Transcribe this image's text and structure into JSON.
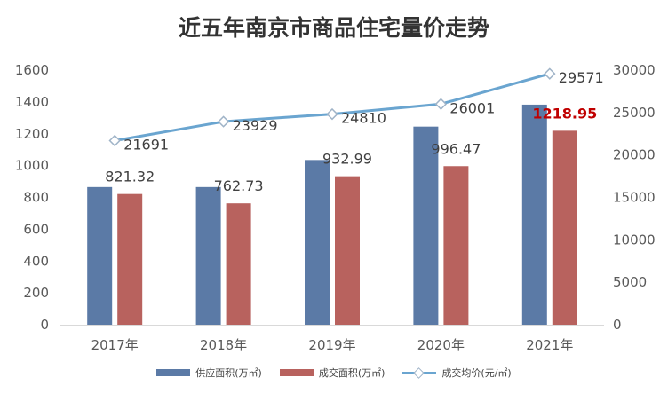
{
  "chart_data": {
    "type": "bar",
    "title": "近五年南京市商品住宅量价走势",
    "categories": [
      "2017年",
      "2018年",
      "2019年",
      "2020年",
      "2021年"
    ],
    "series": [
      {
        "name": "供应面积(万㎡)",
        "type": "bar",
        "axis": "left",
        "color": "#5b7aa6",
        "values": [
          865,
          865,
          1035,
          1245,
          1383
        ]
      },
      {
        "name": "成交面积(万㎡)",
        "type": "bar",
        "axis": "left",
        "color": "#b8625e",
        "values": [
          821.32,
          762.73,
          932.99,
          996.47,
          1218.95
        ],
        "labels": [
          "821.32",
          "762.73",
          "932.99",
          "996.47",
          "1218.95"
        ]
      },
      {
        "name": "成交均价(元/㎡)",
        "type": "line",
        "axis": "right",
        "color": "#6aa5d0",
        "values": [
          21691,
          23929,
          24810,
          26001,
          29571
        ],
        "labels": [
          "21691",
          "23929",
          "24810",
          "26001",
          "29571"
        ]
      }
    ],
    "left_axis": {
      "ylim": [
        0,
        1600
      ],
      "ticks": [
        "0",
        "200",
        "400",
        "600",
        "800",
        "1000",
        "1200",
        "1400",
        "1600"
      ]
    },
    "right_axis": {
      "ylim": [
        0,
        30000
      ],
      "ticks": [
        "0",
        "5000",
        "10000",
        "15000",
        "20000",
        "25000",
        "30000"
      ]
    },
    "highlight_label_color": "#c00000",
    "grid": false,
    "legend_position": "bottom"
  }
}
